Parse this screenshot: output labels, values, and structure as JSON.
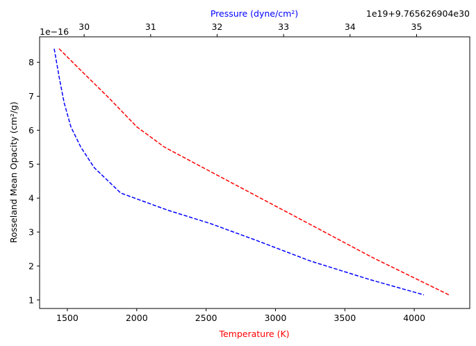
{
  "chart_data": {
    "type": "line",
    "title": "",
    "xlabel": "Temperature (K)",
    "xlabel_color": "#ff0000",
    "ylabel": "Rosseland Mean Opacity (cm²/g)",
    "y_offset_text": "1e−16",
    "xlim": [
      1300,
      4400
    ],
    "ylim": [
      0.75,
      8.75
    ],
    "x_ticks": [
      1500,
      2000,
      2500,
      3000,
      3500,
      4000
    ],
    "y_ticks": [
      1,
      2,
      3,
      4,
      5,
      6,
      7,
      8
    ],
    "top_axis": {
      "label": "Pressure (dyne/cm²)",
      "label_color": "#0000ff",
      "offset_text": "1e19+9.765626904e30",
      "ticks": [
        30,
        31,
        32,
        33,
        34,
        35
      ],
      "lim": [
        29.33,
        35.8
      ]
    },
    "grid": false,
    "series": [
      {
        "axis": "bottom",
        "color": "#ff0000",
        "linestyle": "dashed",
        "x": [
          1440,
          1600,
          1800,
          2000,
          2200,
          2500,
          2800,
          3100,
          3400,
          3700,
          4000,
          4250
        ],
        "y": [
          8.4,
          7.75,
          6.95,
          6.1,
          5.5,
          4.85,
          4.2,
          3.55,
          2.9,
          2.25,
          1.65,
          1.15
        ]
      },
      {
        "axis": "top",
        "color": "#0000ff",
        "linestyle": "dashed",
        "x": [
          29.55,
          29.63,
          29.7,
          29.8,
          29.95,
          30.15,
          30.55,
          31.25,
          31.9,
          32.6,
          33.4,
          34.3,
          35.11
        ],
        "y": [
          8.4,
          7.5,
          6.8,
          6.1,
          5.5,
          4.9,
          4.15,
          3.65,
          3.25,
          2.75,
          2.15,
          1.6,
          1.15
        ]
      }
    ]
  }
}
